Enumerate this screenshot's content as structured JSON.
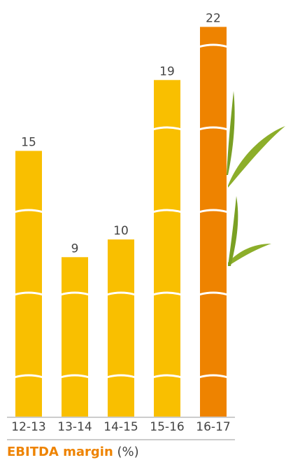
{
  "chart_data": {
    "type": "bar",
    "title": "EBITDA margin",
    "title_unit": "(%)",
    "categories": [
      "12-13",
      "13-14",
      "14-15",
      "15-16",
      "16-17"
    ],
    "values": [
      15,
      9,
      10,
      19,
      22
    ],
    "colors": [
      "#f9bf00",
      "#f9bf00",
      "#f9bf00",
      "#f9bf00",
      "#ee8300"
    ]
  }
}
